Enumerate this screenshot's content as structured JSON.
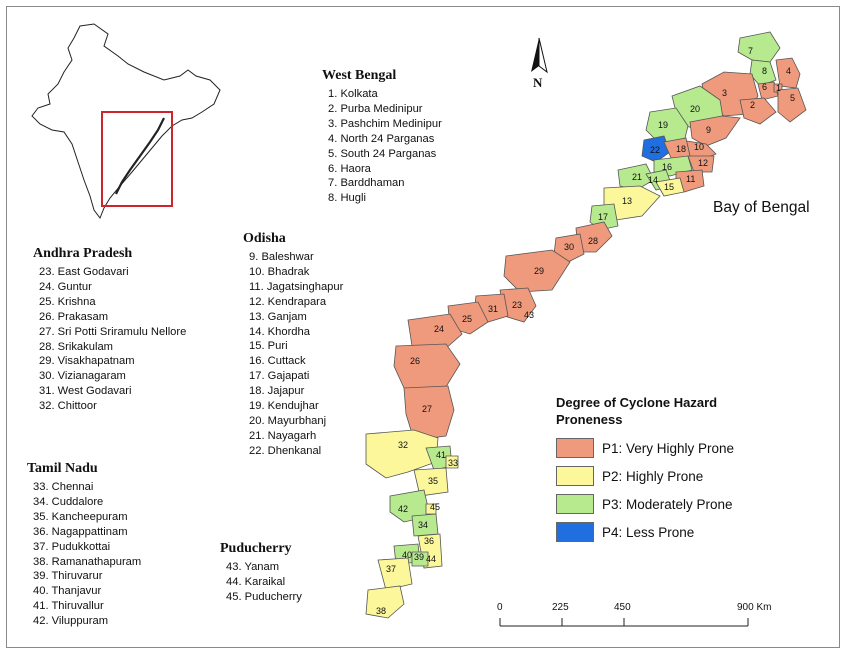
{
  "states": {
    "west_bengal": {
      "title": "West Bengal",
      "districts": [
        "1. Kolkata",
        "2. Purba Medinipur",
        "3. Pashchim Medinipur",
        "4. North 24 Parganas",
        "5. South 24 Parganas",
        "6. Haora",
        "7. Barddhaman",
        "8. Hugli"
      ]
    },
    "odisha": {
      "title": "Odisha",
      "districts": [
        "9. Baleshwar",
        "10. Bhadrak",
        "11. Jagatsinghapur",
        "12. Kendrapara",
        "13. Ganjam",
        "14. Khordha",
        "15. Puri",
        "16. Cuttack",
        "17. Gajapati",
        "18. Jajapur",
        "19. Kendujhar",
        "20. Mayurbhanj",
        "21. Nayagarh",
        "22. Dhenkanal"
      ]
    },
    "andhra_pradesh": {
      "title": "Andhra Pradesh",
      "districts": [
        "23. East Godavari",
        "24. Guntur",
        "25. Krishna",
        "26. Prakasam",
        "27. Sri Potti Sriramulu Nellore",
        "28. Srikakulam",
        "29. Visakhapatnam",
        "30. Vizianagaram",
        "31. West Godavari",
        "32. Chittoor"
      ]
    },
    "tamil_nadu": {
      "title": "Tamil Nadu",
      "districts": [
        "33. Chennai",
        "34. Cuddalore",
        "35. Kancheepuram",
        "36. Nagappattinam",
        "37. Pudukkottai",
        "38. Ramanathapuram",
        "39. Thiruvarur",
        "40. Thanjavur",
        "41. Thiruvallur",
        "42. Viluppuram"
      ]
    },
    "puducherry": {
      "title": "Puducherry",
      "districts": [
        "43. Yanam",
        "44. Karaikal",
        "45. Puducherry"
      ]
    }
  },
  "sea_label": "Bay of Bengal",
  "north_label": "N",
  "legend": {
    "title_line1": "Degree of Cyclone Hazard",
    "title_line2": "Proneness",
    "items": [
      {
        "label": "P1: Very Highly Prone",
        "color": "#ef9a7c"
      },
      {
        "label": "P2: Highly Prone",
        "color": "#fbf79a"
      },
      {
        "label": "P3: Moderately Prone",
        "color": "#b7e98f"
      },
      {
        "label": "P4: Less Prone",
        "color": "#1f6fe0"
      }
    ]
  },
  "scale": {
    "ticks": [
      "0",
      "225",
      "450",
      "900 Km"
    ]
  },
  "map_district_numbers": [
    "1",
    "2",
    "3",
    "4",
    "5",
    "6",
    "7",
    "8",
    "9",
    "10",
    "11",
    "12",
    "13",
    "14",
    "15",
    "16",
    "17",
    "18",
    "19",
    "20",
    "21",
    "22",
    "23",
    "24",
    "25",
    "26",
    "27",
    "28",
    "29",
    "30",
    "31",
    "32",
    "33",
    "34",
    "35",
    "36",
    "37",
    "38",
    "39",
    "40",
    "41",
    "42",
    "43",
    "44",
    "45"
  ],
  "colors": {
    "p1": "#ef9a7c",
    "p2": "#fbf79a",
    "p3": "#b7e98f",
    "p4": "#1f6fe0",
    "inset_box": "#d0242c"
  }
}
